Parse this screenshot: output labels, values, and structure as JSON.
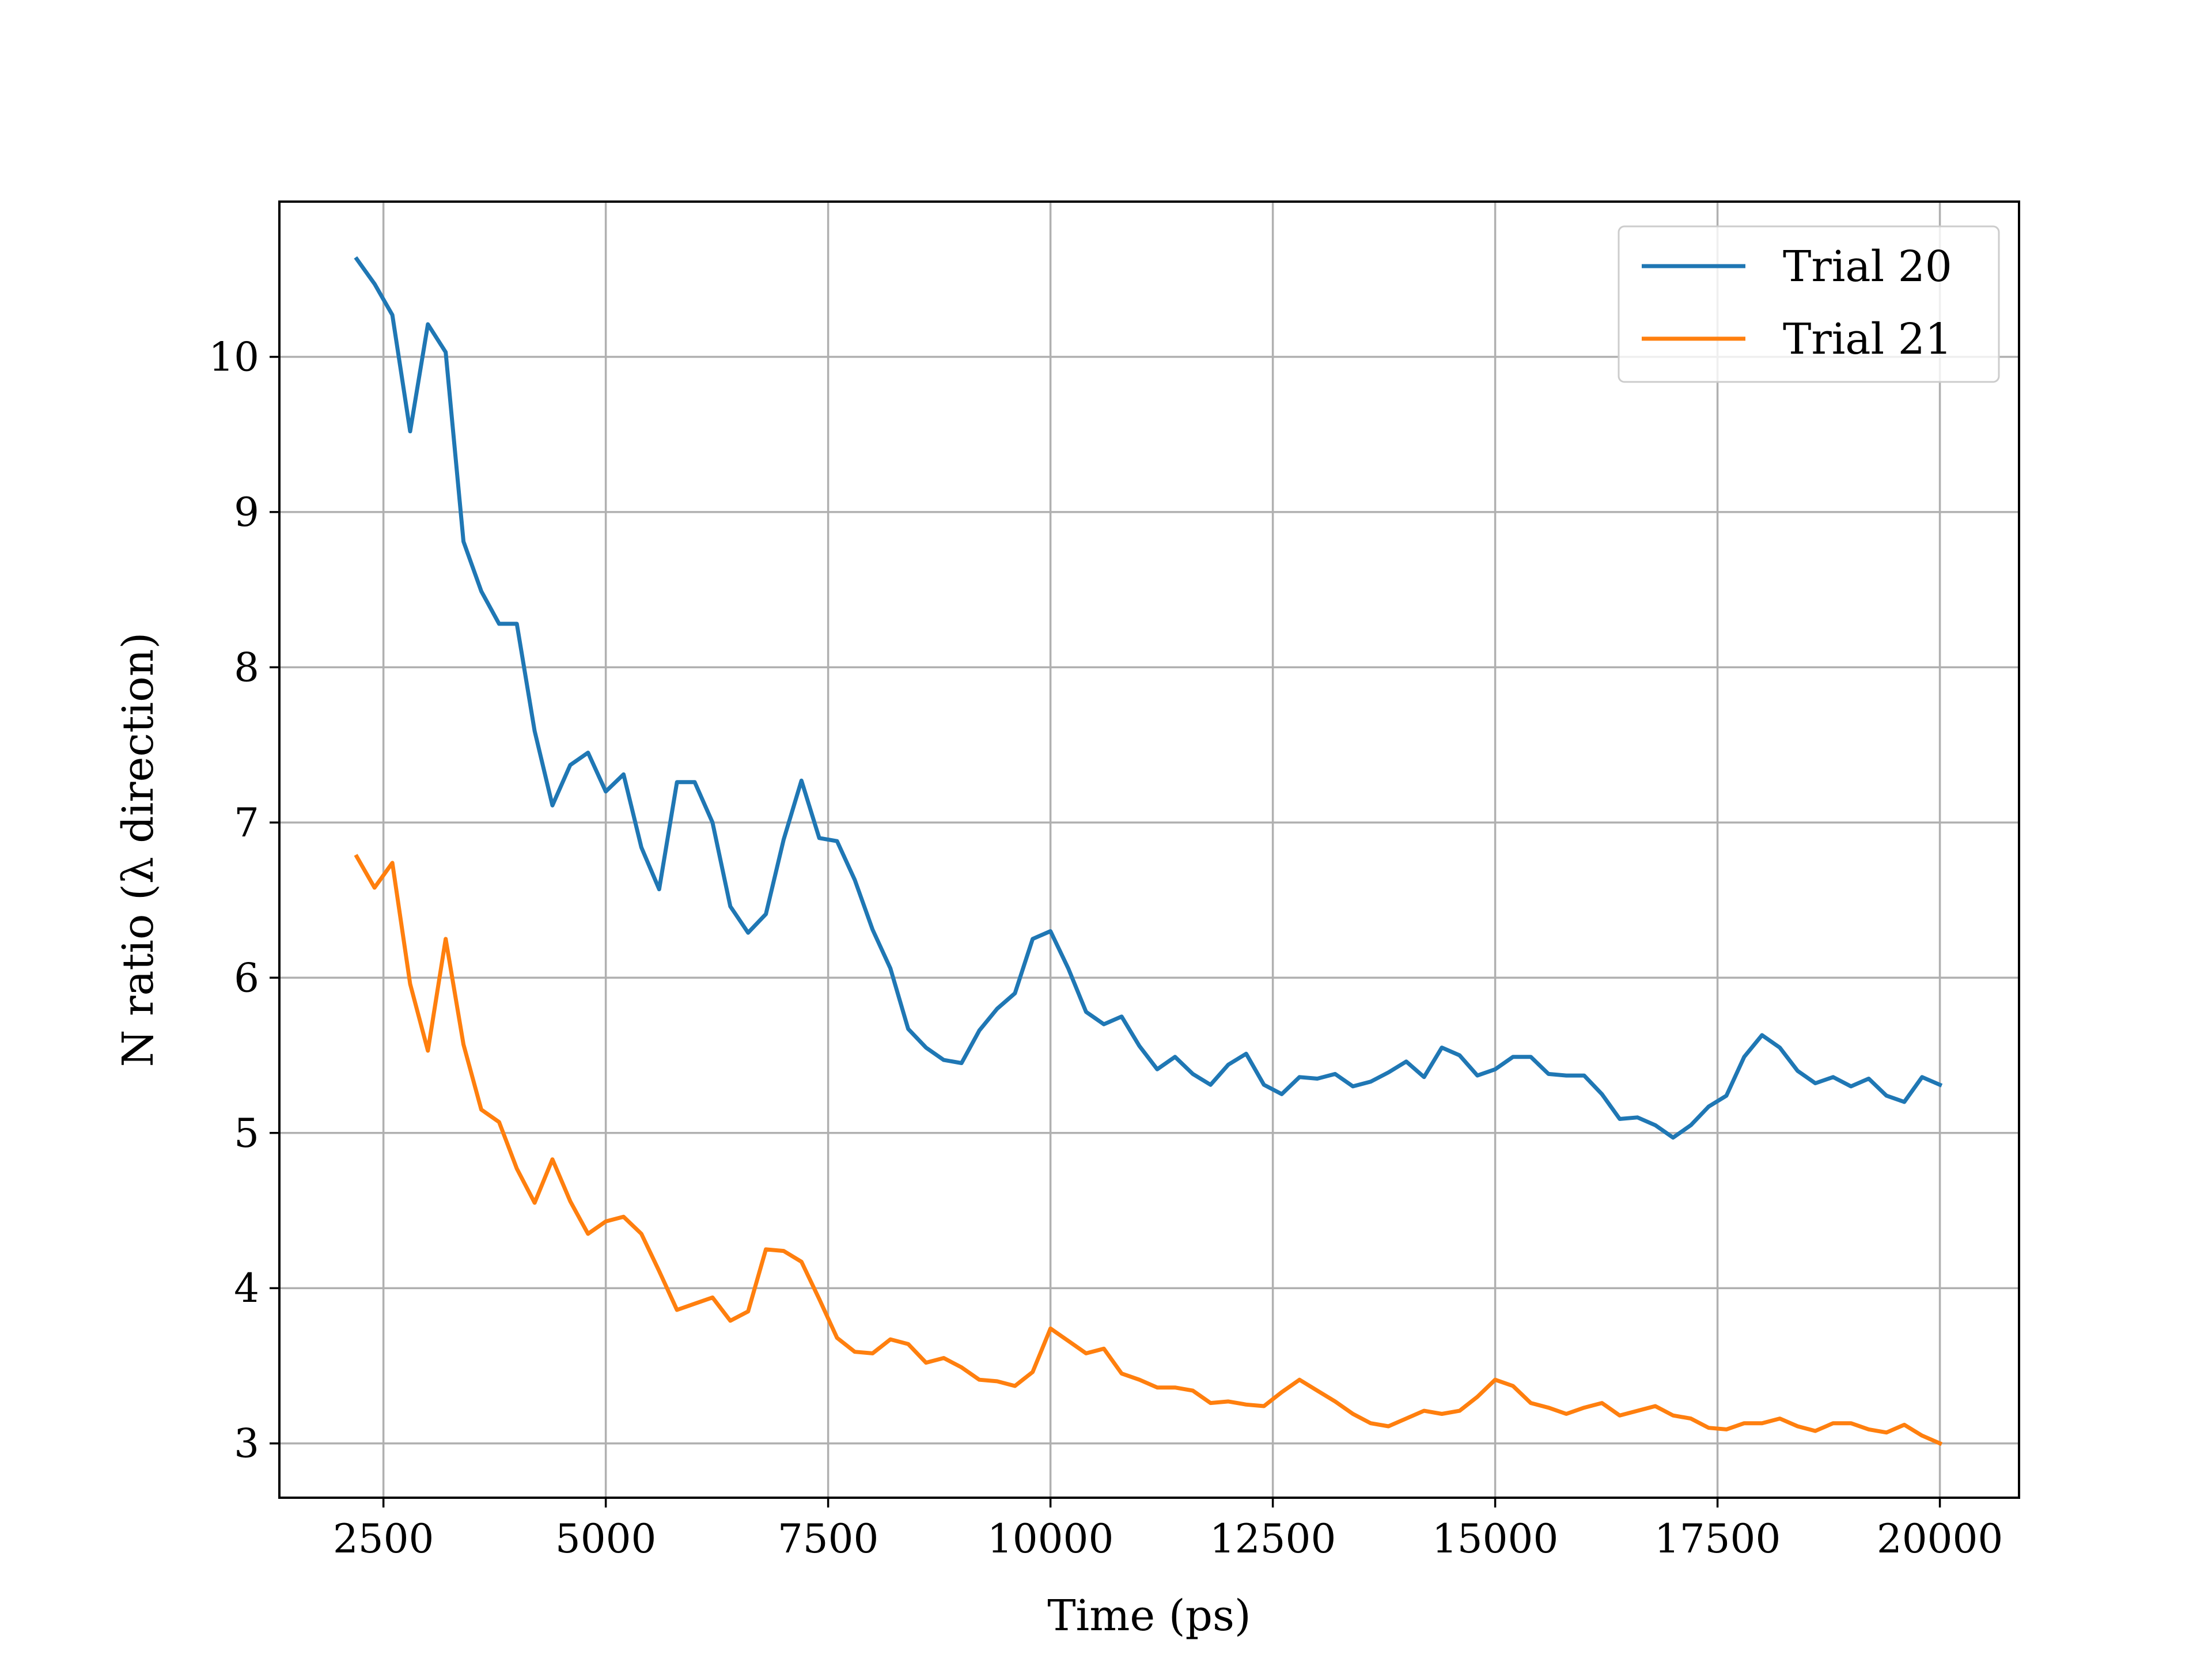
{
  "chart_data": {
    "type": "line",
    "title": "",
    "xlabel": "Time (ps)",
    "ylabel": "N ratio (λ direction)",
    "xlim": [
      1330,
      20890
    ],
    "ylim": [
      2.65,
      11.0
    ],
    "xticks": [
      2500,
      5000,
      7500,
      10000,
      12500,
      15000,
      17500,
      20000
    ],
    "yticks": [
      3,
      4,
      5,
      6,
      7,
      8,
      9,
      10
    ],
    "grid": true,
    "legend_position": "top-right",
    "x": [
      2200,
      2400,
      2600,
      2800,
      3000,
      3200,
      3400,
      3600,
      3800,
      4000,
      4200,
      4400,
      4600,
      4800,
      5000,
      5200,
      5400,
      5600,
      5800,
      6000,
      6200,
      6400,
      6600,
      6800,
      7000,
      7200,
      7400,
      7600,
      7800,
      8000,
      8200,
      8400,
      8600,
      8800,
      9000,
      9200,
      9400,
      9600,
      9800,
      10000,
      10200,
      10400,
      10600,
      10800,
      11000,
      11200,
      11400,
      11600,
      11800,
      12000,
      12200,
      12400,
      12600,
      12800,
      13000,
      13200,
      13400,
      13600,
      13800,
      14000,
      14200,
      14400,
      14600,
      14800,
      15000,
      15200,
      15400,
      15600,
      15800,
      16000,
      16200,
      16400,
      16600,
      16800,
      17000,
      17200,
      17400,
      17600,
      17800,
      18000,
      18200,
      18400,
      18600,
      18800,
      19000,
      19200,
      19400,
      19600,
      19800,
      20000
    ],
    "series": [
      {
        "name": "Trial 20",
        "color": "#1f77b4",
        "values": [
          10.63,
          10.47,
          10.27,
          9.52,
          10.21,
          10.03,
          8.81,
          8.49,
          8.28,
          8.28,
          7.59,
          7.11,
          7.37,
          7.45,
          7.2,
          7.31,
          6.84,
          6.57,
          7.26,
          7.26,
          7.0,
          6.46,
          6.29,
          6.41,
          6.89,
          7.27,
          6.9,
          6.88,
          6.63,
          6.31,
          6.06,
          5.67,
          5.55,
          5.47,
          5.45,
          5.66,
          5.8,
          5.9,
          6.25,
          6.3,
          6.06,
          5.78,
          5.7,
          5.75,
          5.56,
          5.41,
          5.49,
          5.38,
          5.31,
          5.44,
          5.51,
          5.31,
          5.25,
          5.36,
          5.35,
          5.38,
          5.3,
          5.33,
          5.39,
          5.46,
          5.36,
          5.55,
          5.5,
          5.37,
          5.41,
          5.49,
          5.49,
          5.38,
          5.37,
          5.37,
          5.25,
          5.09,
          5.1,
          5.05,
          4.97,
          5.05,
          5.17,
          5.24,
          5.49,
          5.63,
          5.55,
          5.4,
          5.32,
          5.36,
          5.3,
          5.35,
          5.24,
          5.2,
          5.36,
          5.31
        ]
      },
      {
        "name": "Trial 21",
        "color": "#ff7f0e",
        "values": [
          6.78,
          6.58,
          6.74,
          5.96,
          5.53,
          6.25,
          5.57,
          5.15,
          5.07,
          4.77,
          4.55,
          4.83,
          4.56,
          4.35,
          4.43,
          4.46,
          4.35,
          4.11,
          3.86,
          3.9,
          3.94,
          3.79,
          3.85,
          4.25,
          4.24,
          4.17,
          3.93,
          3.68,
          3.59,
          3.58,
          3.67,
          3.64,
          3.52,
          3.55,
          3.49,
          3.41,
          3.4,
          3.37,
          3.46,
          3.74,
          3.66,
          3.58,
          3.61,
          3.45,
          3.41,
          3.36,
          3.36,
          3.34,
          3.26,
          3.27,
          3.25,
          3.24,
          3.33,
          3.41,
          3.34,
          3.27,
          3.19,
          3.13,
          3.11,
          3.16,
          3.21,
          3.19,
          3.21,
          3.3,
          3.41,
          3.37,
          3.26,
          3.23,
          3.19,
          3.23,
          3.26,
          3.18,
          3.21,
          3.24,
          3.18,
          3.16,
          3.1,
          3.09,
          3.13,
          3.13,
          3.16,
          3.11,
          3.08,
          3.13,
          3.13,
          3.09,
          3.07,
          3.12,
          3.05,
          3.0
        ]
      }
    ]
  }
}
